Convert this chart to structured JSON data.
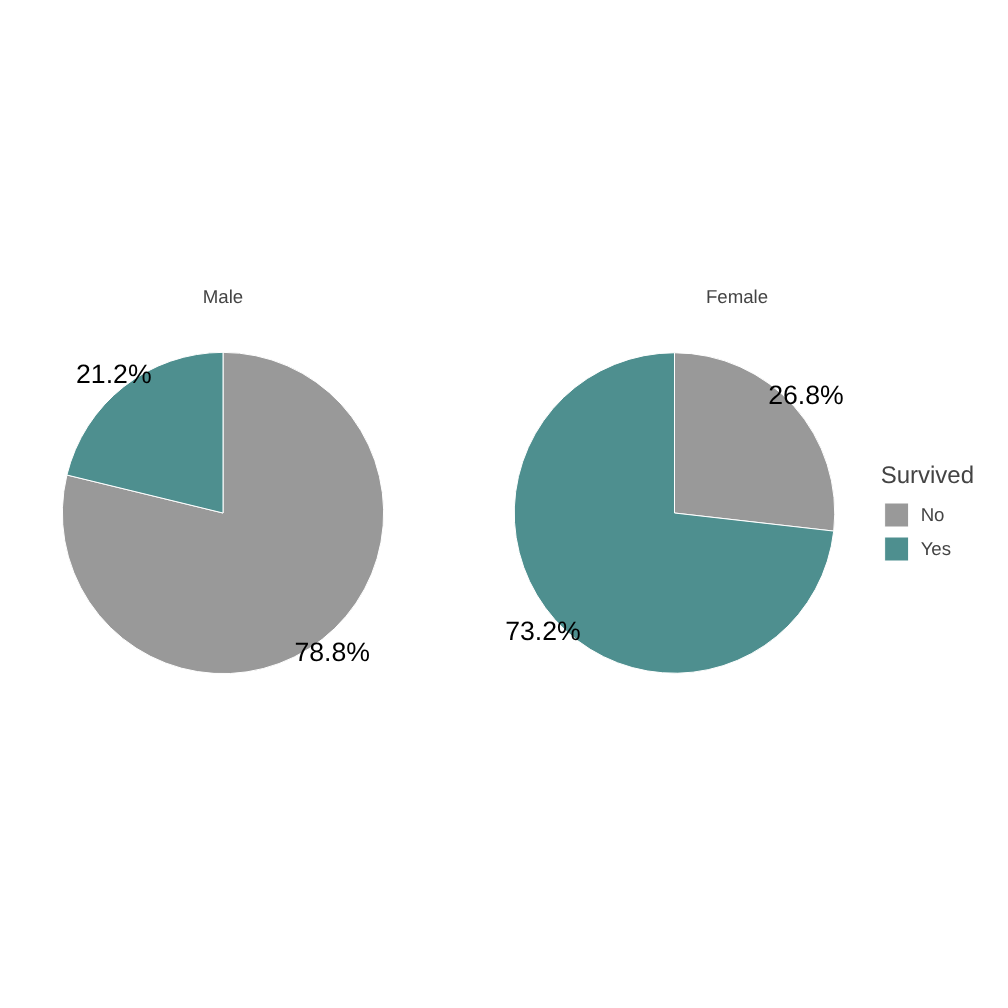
{
  "chart_data": [
    {
      "type": "pie",
      "title": "Male",
      "categories": [
        null,
        null
      ],
      "values": [
        78.8,
        21.2
      ],
      "colors": [
        "#999999",
        "#4e8f8f"
      ],
      "value_labels": [
        "78.8%",
        "21.2%"
      ]
    },
    {
      "type": "pie",
      "title": "Female",
      "categories": [
        "No",
        "Yes"
      ],
      "values": [
        26.8,
        73.2
      ],
      "colors": [
        "#999999",
        "#4e8f8f"
      ],
      "value_labels": [
        "26.8%",
        "73.2%"
      ],
      "legend": "right",
      "legend_title": "Survived"
    }
  ]
}
